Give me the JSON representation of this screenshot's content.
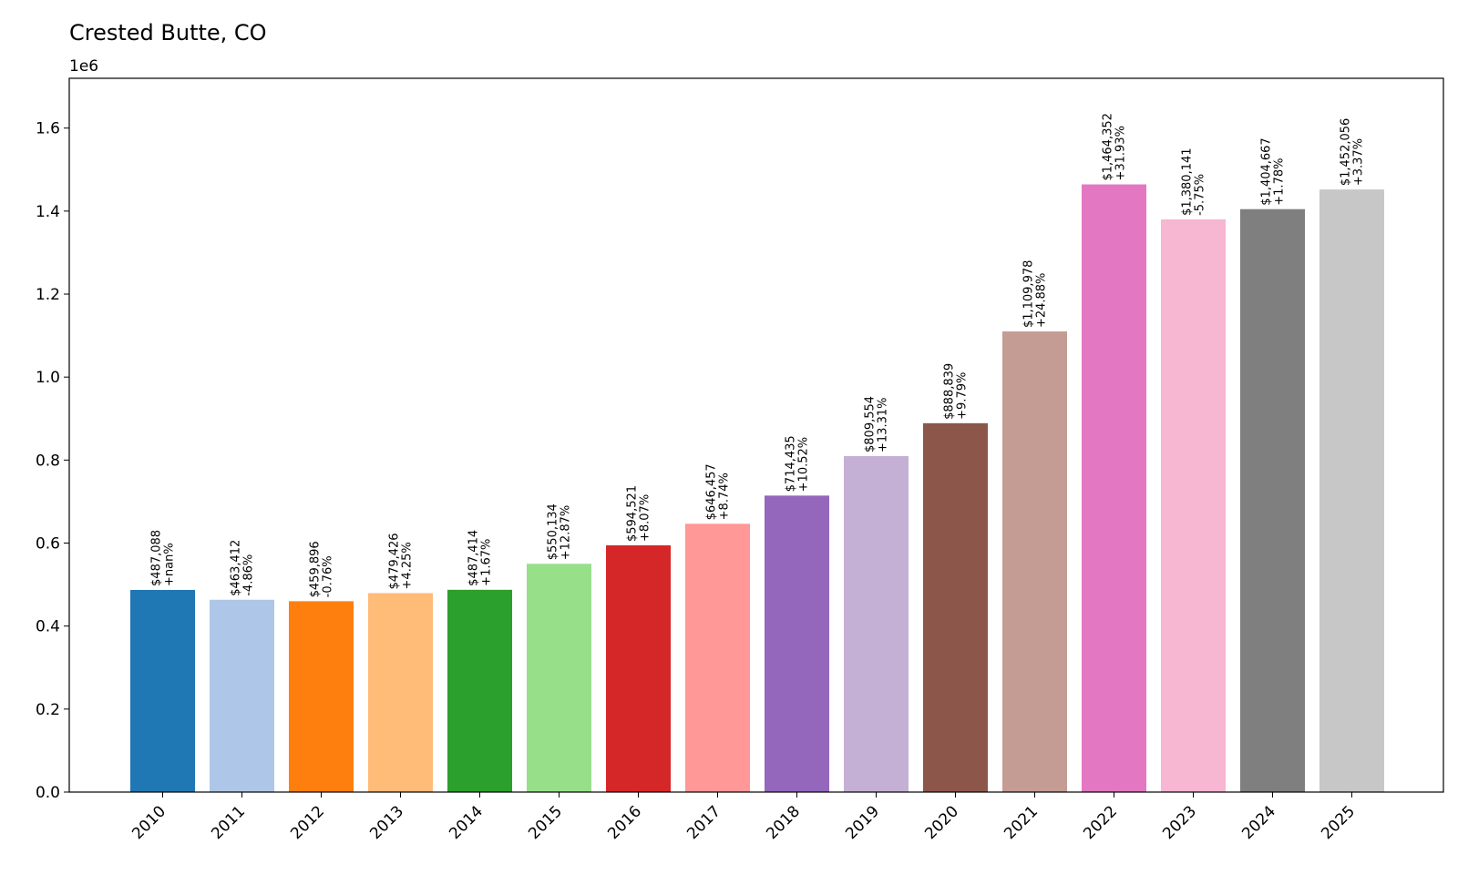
{
  "chart_data": {
    "type": "bar",
    "title": "Crested Butte, CO",
    "xlabel": "",
    "ylabel": "",
    "y_offset_label": "1e6",
    "ylim": [
      0,
      1.72
    ],
    "yticks": [
      0.0,
      0.2,
      0.4,
      0.6,
      0.8,
      1.0,
      1.2,
      1.4,
      1.6
    ],
    "ytick_labels": [
      "0.0",
      "0.2",
      "0.4",
      "0.6",
      "0.8",
      "1.0",
      "1.2",
      "1.4",
      "1.6"
    ],
    "grid": false,
    "categories": [
      "2010",
      "2011",
      "2012",
      "2013",
      "2014",
      "2015",
      "2016",
      "2017",
      "2018",
      "2019",
      "2020",
      "2021",
      "2022",
      "2023",
      "2024",
      "2025"
    ],
    "values": [
      487088,
      463412,
      459896,
      479426,
      487414,
      550134,
      594521,
      646457,
      714435,
      809554,
      888839,
      1109978,
      1464352,
      1380141,
      1404667,
      1452056
    ],
    "value_labels": [
      "$487,088",
      "$463,412",
      "$459,896",
      "$479,426",
      "$487,414",
      "$550,134",
      "$594,521",
      "$646,457",
      "$714,435",
      "$809,554",
      "$888,839",
      "$1,109,978",
      "$1,464,352",
      "$1,380,141",
      "$1,404,667",
      "$1,452,056"
    ],
    "change_labels": [
      "+nan%",
      "-4.86%",
      "-0.76%",
      "+4.25%",
      "+1.67%",
      "+12.87%",
      "+8.07%",
      "+8.74%",
      "+10.52%",
      "+13.31%",
      "+9.79%",
      "+24.88%",
      "+31.93%",
      "-5.75%",
      "+1.78%",
      "+3.37%"
    ],
    "colors": [
      "#1f77b4",
      "#aec7e8",
      "#ff7f0e",
      "#ffbb78",
      "#2ca02c",
      "#98df8a",
      "#d62728",
      "#ff9896",
      "#9467bd",
      "#c5b0d5",
      "#8c564b",
      "#c49c94",
      "#e377c2",
      "#f7b6d2",
      "#7f7f7f",
      "#c7c7c7"
    ]
  }
}
